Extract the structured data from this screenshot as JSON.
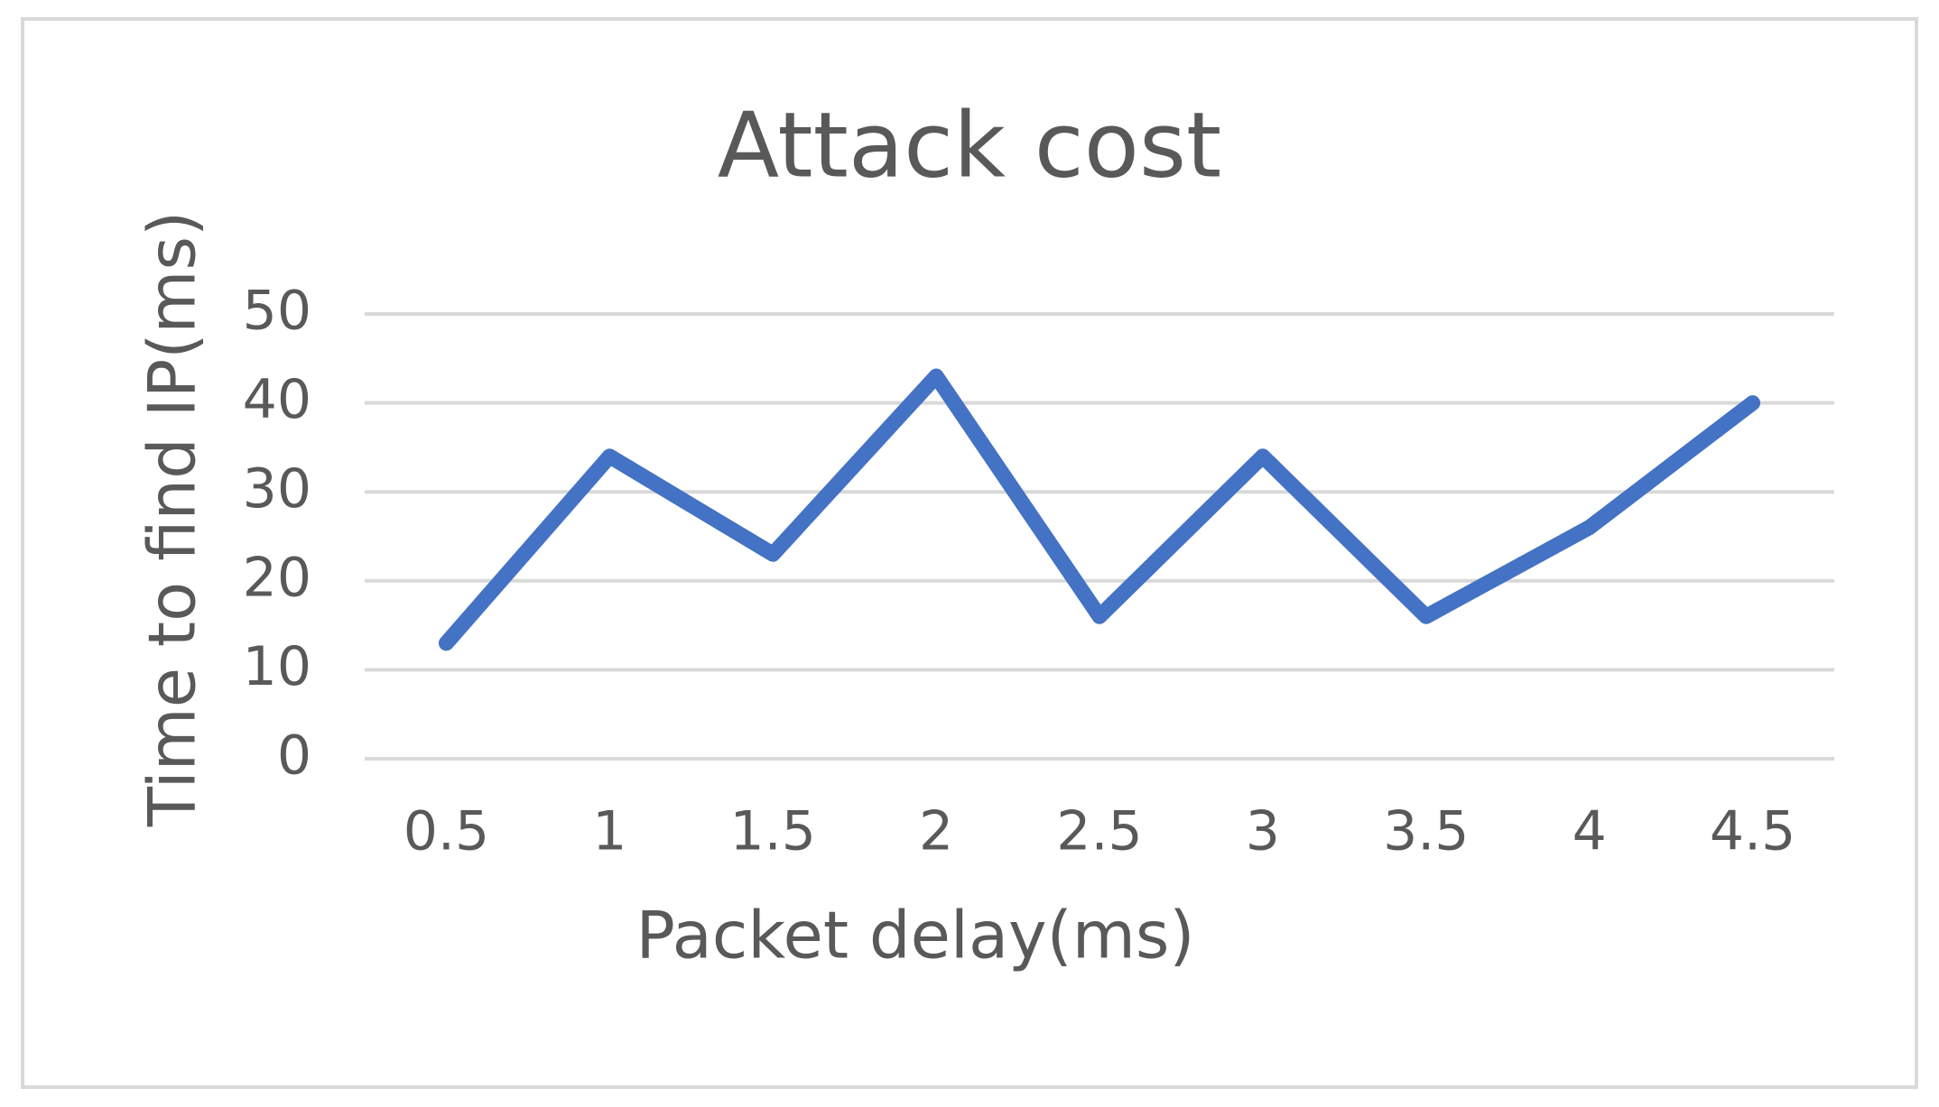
{
  "chart_data": {
    "type": "line",
    "title": "Attack cost",
    "x_label": "Packet delay(ms)",
    "y_label": "Time to find IP(ms)",
    "categories": [
      "0.5",
      "1",
      "1.5",
      "2",
      "2.5",
      "3",
      "3.5",
      "4",
      "4.5"
    ],
    "series": [
      {
        "color": "#4472c4",
        "values": [
          13,
          34,
          23,
          43,
          16,
          34,
          16,
          26,
          40
        ]
      }
    ],
    "ylim": [
      0,
      50
    ],
    "yticks": [
      0,
      10,
      20,
      30,
      40,
      50
    ],
    "grid": true
  }
}
